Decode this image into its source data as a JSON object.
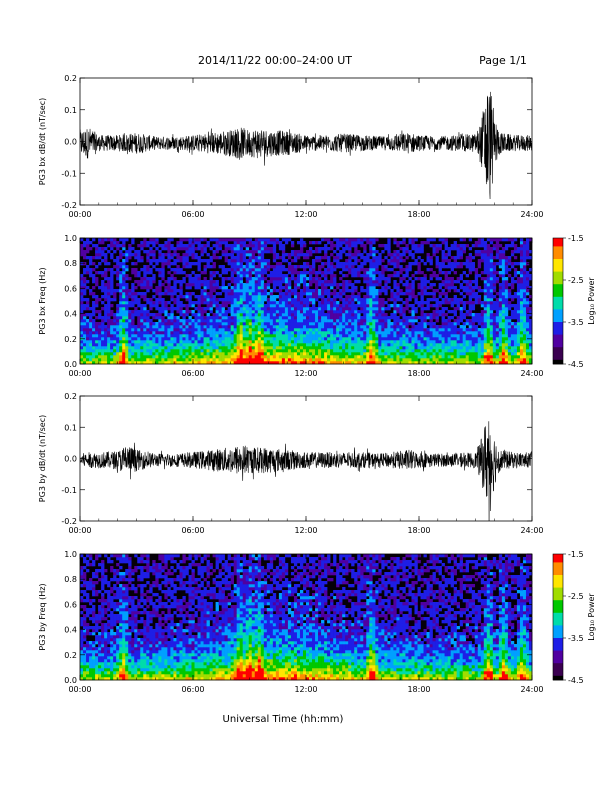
{
  "header": {
    "title": "2014/11/22  00:00–24:00 UT",
    "page": "Page 1/1"
  },
  "colors": {
    "trace": "#000000",
    "spectrogram_background": "#050008",
    "colormap": [
      "#000000",
      "#3a0050",
      "#5000a0",
      "#1e1ee6",
      "#00a0ff",
      "#00dcaa",
      "#00c800",
      "#a0dc00",
      "#ffe600",
      "#ff8c00",
      "#ff0000"
    ]
  },
  "xlabel": "Universal Time (hh:mm)",
  "x_ticks": [
    "00:00",
    "06:00",
    "12:00",
    "18:00",
    "24:00"
  ],
  "chart_data": [
    {
      "type": "line",
      "ylabel": "PG3 bx dB/dt (nT/sec)",
      "ylim": [
        -0.2,
        0.2
      ],
      "y_ticks": [
        "0.2",
        "0.1",
        "0.0",
        "-0.1",
        "-0.2"
      ],
      "x_unit": "hours UT",
      "xlim": [
        0,
        24
      ],
      "envelope": {
        "x": [
          0,
          0.5,
          1,
          2,
          3,
          4,
          5,
          6,
          7,
          8,
          8.5,
          9,
          9.5,
          10,
          11,
          12,
          13,
          14,
          15,
          16,
          17,
          17.5,
          18,
          19,
          20,
          21,
          21.3,
          21.6,
          21.8,
          22,
          22.3,
          23,
          24
        ],
        "amplitude": [
          0.05,
          0.06,
          0.03,
          0.03,
          0.04,
          0.025,
          0.025,
          0.03,
          0.04,
          0.05,
          0.06,
          0.05,
          0.06,
          0.05,
          0.045,
          0.03,
          0.03,
          0.035,
          0.03,
          0.025,
          0.035,
          0.04,
          0.03,
          0.025,
          0.03,
          0.035,
          0.08,
          0.22,
          0.22,
          0.1,
          0.04,
          0.03,
          0.03
        ]
      }
    },
    {
      "type": "heatmap",
      "ylabel": "PG3 bx Freq (Hz)",
      "ylim": [
        0.0,
        1.0
      ],
      "y_ticks": [
        "1.0",
        "0.8",
        "0.6",
        "0.4",
        "0.2",
        "0.0"
      ],
      "xlim": [
        0,
        24
      ],
      "colorbar": {
        "label": "Log₁₀ Power",
        "range": [
          -4.5,
          -1.5
        ],
        "ticks": [
          "-1.5",
          "-2.5",
          "-3.5",
          "-4.5"
        ]
      },
      "bright_bands_hours": [
        2.3,
        8.5,
        9.0,
        9.5,
        15.5,
        21.7,
        22.5,
        23.5
      ]
    },
    {
      "type": "line",
      "ylabel": "PG3 by dB/dt (nT/sec)",
      "ylim": [
        -0.2,
        0.2
      ],
      "y_ticks": [
        "0.2",
        "0.1",
        "0.0",
        "-0.1",
        "-0.2"
      ],
      "x_unit": "hours UT",
      "xlim": [
        0,
        24
      ],
      "envelope": {
        "x": [
          0,
          0.5,
          1,
          2,
          2.5,
          3,
          4,
          5,
          6,
          7,
          8,
          8.5,
          9,
          9.5,
          10,
          11,
          12,
          13,
          14,
          15,
          16,
          17,
          17.5,
          18,
          19,
          20,
          21,
          21.3,
          21.6,
          21.8,
          22,
          22.3,
          23,
          24
        ],
        "amplitude": [
          0.025,
          0.03,
          0.03,
          0.035,
          0.06,
          0.04,
          0.025,
          0.025,
          0.03,
          0.04,
          0.05,
          0.06,
          0.05,
          0.05,
          0.05,
          0.04,
          0.03,
          0.03,
          0.03,
          0.03,
          0.025,
          0.035,
          0.04,
          0.03,
          0.025,
          0.025,
          0.03,
          0.08,
          0.17,
          0.2,
          0.1,
          0.04,
          0.03,
          0.03
        ]
      }
    },
    {
      "type": "heatmap",
      "ylabel": "PG3 by Freq (Hz)",
      "ylim": [
        0.0,
        1.0
      ],
      "y_ticks": [
        "1.0",
        "0.8",
        "0.6",
        "0.4",
        "0.2",
        "0.0"
      ],
      "xlim": [
        0,
        24
      ],
      "colorbar": {
        "label": "Log₁₀ Power",
        "range": [
          -4.5,
          -1.5
        ],
        "ticks": [
          "-1.5",
          "-2.5",
          "-3.5",
          "-4.5"
        ]
      },
      "bright_bands_hours": [
        2.3,
        8.5,
        9.0,
        9.5,
        15.5,
        21.7,
        22.5,
        23.5
      ]
    }
  ]
}
